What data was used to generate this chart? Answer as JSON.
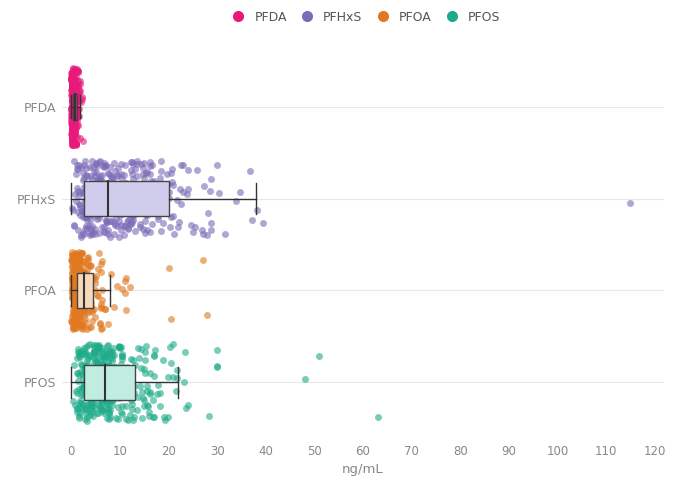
{
  "substances": [
    "PFDA",
    "PFHxS",
    "PFOA",
    "PFOS"
  ],
  "colors": {
    "PFDA": "#E8197A",
    "PFHxS": "#7B6BB8",
    "PFOA": "#E07820",
    "PFOS": "#1FAB8A"
  },
  "box_face_colors": {
    "PFDA": "#E8197A",
    "PFHxS": "#D0CCEC",
    "PFOA": "#F5D9B8",
    "PFOS": "#C0EDE0"
  },
  "xlim": [
    -2,
    122
  ],
  "xticks": [
    0,
    10,
    20,
    30,
    40,
    50,
    60,
    70,
    80,
    90,
    100,
    110,
    120
  ],
  "xlabel": "ng/mL",
  "box_stats": {
    "PFDA": {
      "q1": 0.3,
      "median": 0.8,
      "q3": 1.2,
      "whisker_low": 0.0,
      "whisker_high": 1.8
    },
    "PFHxS": {
      "q1": 2.5,
      "median": 7.5,
      "q3": 20.0,
      "whisker_low": 0.0,
      "whisker_high": 38.0
    },
    "PFOA": {
      "q1": 1.2,
      "median": 2.5,
      "q3": 4.5,
      "whisker_low": 0.0,
      "whisker_high": 8.0
    },
    "PFOS": {
      "q1": 2.5,
      "median": 7.0,
      "q3": 13.0,
      "whisker_low": 0.0,
      "whisker_high": 22.0
    }
  },
  "background_color": "#ffffff",
  "grid_color": "#E8E8E8",
  "text_color": "#888888",
  "legend_items": [
    "PFDA",
    "PFHxS",
    "PFOA",
    "PFOS"
  ],
  "point_alpha": 0.6,
  "point_size": 25,
  "jitter_spread": 0.42
}
